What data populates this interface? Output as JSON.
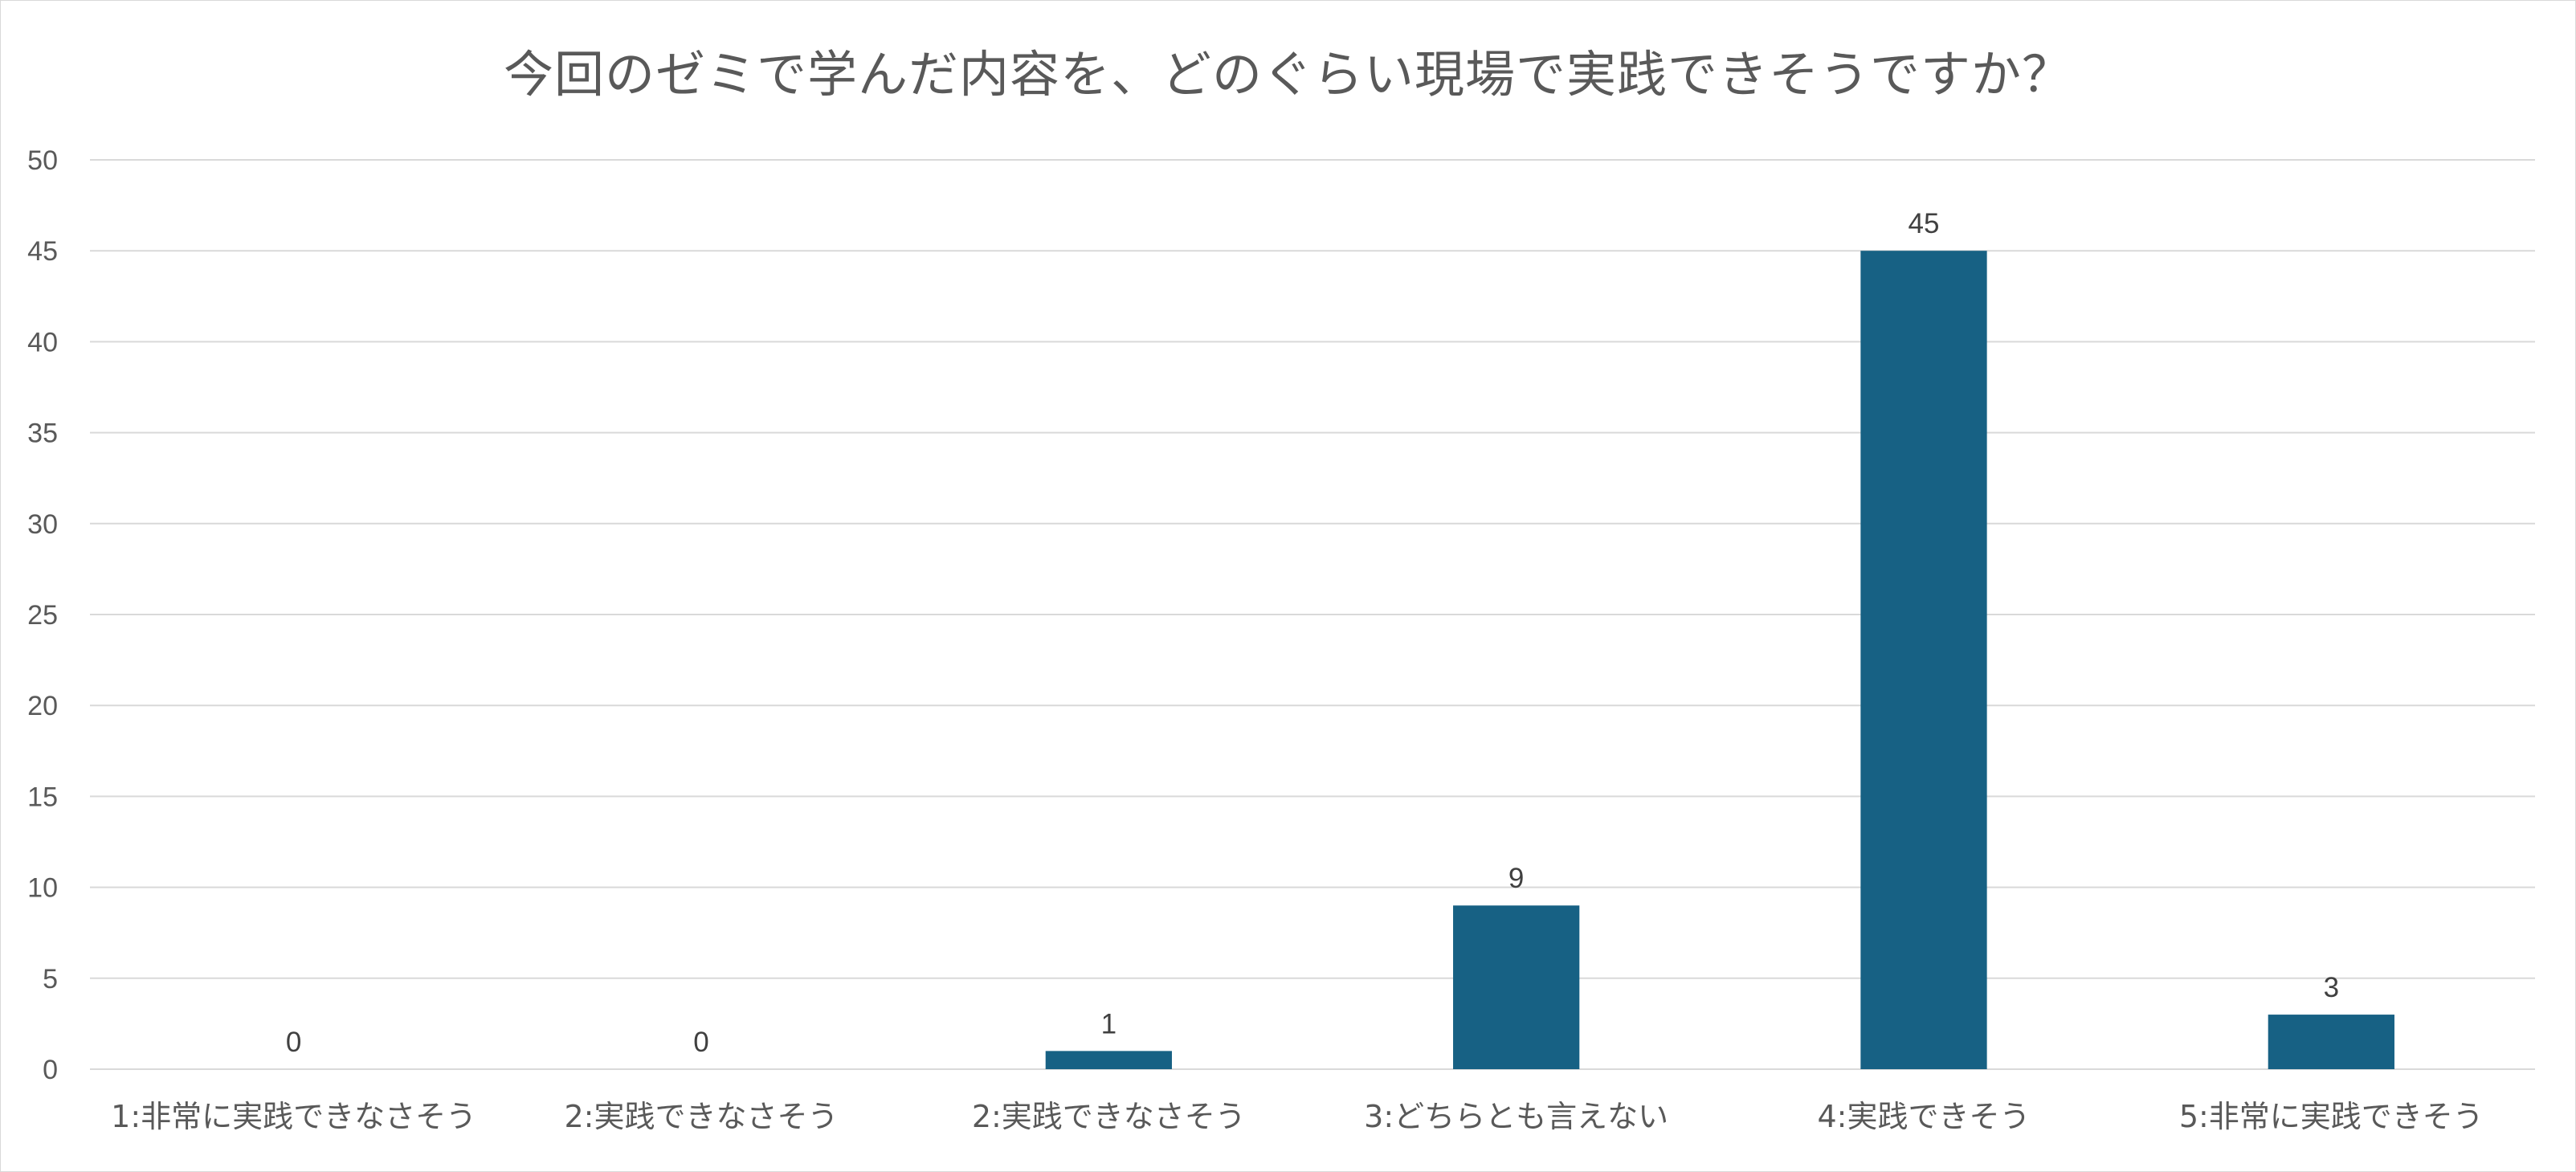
{
  "chart_data": {
    "type": "bar",
    "title": "今回のゼミで学んだ内容を、どのぐらい現場で実践できそうですか？",
    "categories": [
      "1:非常に実践できなさそう",
      "2:実践できなさそう",
      "2:実践できなさそう",
      "3:どちらとも言えない",
      "4:実践できそう",
      "5:非常に実践できそう"
    ],
    "values": [
      0,
      0,
      1,
      9,
      45,
      3
    ],
    "data_labels": [
      "0",
      "0",
      "1",
      "9",
      "45",
      "3"
    ],
    "y_ticks": [
      "0",
      "5",
      "10",
      "15",
      "20",
      "25",
      "30",
      "35",
      "40",
      "45",
      "50"
    ],
    "ylim": [
      0,
      50
    ],
    "grid": true,
    "legend": "none",
    "bar_color": "#176184"
  }
}
